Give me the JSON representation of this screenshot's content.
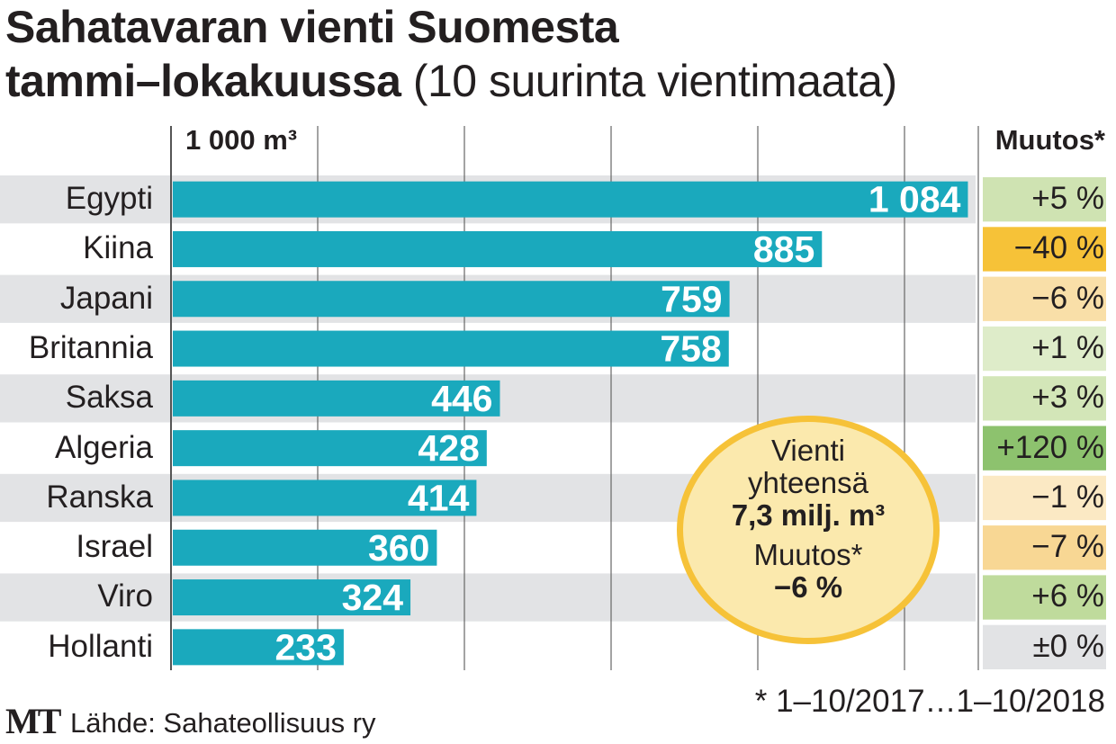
{
  "title": {
    "line1": "Sahatavaran vienti Suomesta",
    "line2_bold": "tammi–lokakuussa",
    "line2_normal": " (10 suurinta vientimaata)"
  },
  "unit_label": "1 000 m³",
  "change_header": "Muutos*",
  "chart_data": {
    "type": "bar",
    "orientation": "horizontal",
    "title": "Sahatavaran vienti Suomesta tammi–lokakuussa (10 suurinta vientimaata)",
    "unit": "1 000 m³",
    "categories": [
      "Egypti",
      "Kiina",
      "Japani",
      "Britannia",
      "Saksa",
      "Algeria",
      "Ranska",
      "Israel",
      "Viro",
      "Hollanti"
    ],
    "values": [
      1084,
      885,
      759,
      758,
      446,
      428,
      414,
      360,
      324,
      233
    ],
    "value_labels": [
      "1 084",
      "885",
      "759",
      "758",
      "446",
      "428",
      "414",
      "360",
      "324",
      "233"
    ],
    "changes": [
      "+5 %",
      "−40 %",
      "−6 %",
      "+1 %",
      "+3 %",
      "+120 %",
      "−1 %",
      "−7 %",
      "+6 %",
      "±0 %"
    ],
    "change_colors": [
      "#cfe3b2",
      "#f6c238",
      "#f9dfa8",
      "#deecc9",
      "#d3e6b8",
      "#8dc26e",
      "#fbe9c4",
      "#f8d794",
      "#bfdb9c",
      "#e2e3e5"
    ],
    "xlim": [
      0,
      1100
    ],
    "grid": true,
    "grid_step": 200,
    "bar_color": "#1aa9bd"
  },
  "bubble": {
    "line1": "Vienti",
    "line2": "yhteensä",
    "total": "7,3 milj. m³",
    "change_label": "Muutos*",
    "change_value": "−6 %"
  },
  "footnote": "* 1–10/2017…1–10/2018",
  "logo": "MT",
  "source": "Lähde: Sahateollisuus ry"
}
